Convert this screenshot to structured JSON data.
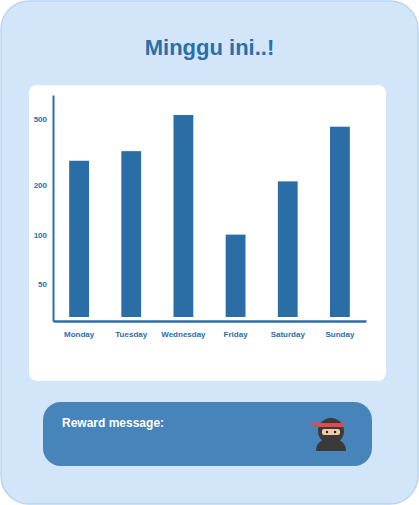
{
  "chart_data": {
    "type": "bar",
    "title": "Minggu ini..!",
    "categories": [
      "Monday",
      "Tuesday",
      "Wednesday",
      "Friday",
      "Saturday",
      "Sunday"
    ],
    "values": [
      280,
      320,
      530,
      100,
      210,
      450
    ],
    "color": "#2b6ea6",
    "log": "y",
    "ylim": [
      30,
      700
    ],
    "yticks": [
      50,
      100,
      200,
      500
    ],
    "grid": false,
    "annotations": [
      "Reward message:"
    ]
  }
}
